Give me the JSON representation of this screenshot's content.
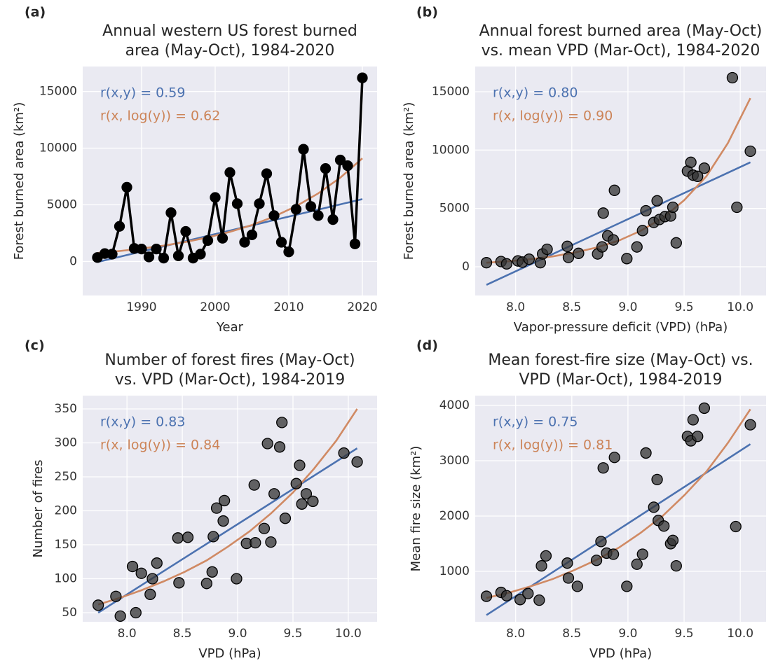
{
  "chart_data": [
    {
      "type": "line",
      "panel_label": "(a)",
      "title": [
        "Annual western US forest burned",
        "area (May-Oct), 1984-2020"
      ],
      "xlabel": "Year",
      "ylabel": "Forest burned area (km²)",
      "xlim": [
        1982,
        2022
      ],
      "ylim": [
        -3000,
        17200
      ],
      "xticks": [
        1990,
        2000,
        2010,
        2020
      ],
      "yticks": [
        0,
        5000,
        10000,
        15000
      ],
      "grid": true,
      "annotations": [
        {
          "text": "r(x,y) = 0.59",
          "color": "#4c72b0"
        },
        {
          "text": "r(x, log(y)) = 0.62",
          "color": "#cc8458"
        }
      ],
      "series": [
        {
          "color": "#000000",
          "line": true,
          "marker": true,
          "x": [
            1984,
            1985,
            1986,
            1987,
            1988,
            1989,
            1990,
            1991,
            1992,
            1993,
            1994,
            1995,
            1996,
            1997,
            1998,
            1999,
            2000,
            2001,
            2002,
            2003,
            2004,
            2005,
            2006,
            2007,
            2008,
            2009,
            2010,
            2011,
            2012,
            2013,
            2014,
            2015,
            2016,
            2017,
            2018,
            2019,
            2020
          ],
          "values": [
            350,
            700,
            650,
            3100,
            6550,
            1150,
            1100,
            400,
            1100,
            300,
            4300,
            500,
            2650,
            300,
            650,
            1850,
            5650,
            2050,
            7850,
            5100,
            1700,
            2350,
            5100,
            7750,
            4050,
            1700,
            850,
            4600,
            9900,
            4850,
            4050,
            8200,
            3700,
            8950,
            8450,
            1550,
            16200
          ]
        },
        {
          "color": "#4c72b0",
          "line": true,
          "marker": false,
          "x": [
            1984,
            2020
          ],
          "values": [
            -50,
            5500
          ]
        },
        {
          "color": "#d08a64",
          "line": true,
          "marker": false,
          "x": [
            1984,
            1987,
            1990,
            1993,
            1996,
            1999,
            2002,
            2005,
            2008,
            2011,
            2014,
            2017,
            2020
          ],
          "values": [
            750,
            923,
            1137,
            1400,
            1724,
            2123,
            2613,
            3218,
            3962,
            4878,
            6006,
            7395,
            9100
          ]
        }
      ]
    },
    {
      "type": "scatter",
      "panel_label": "(b)",
      "title": [
        "Annual forest burned area (May-Oct)",
        "vs. mean VPD (Mar-Oct), 1984-2020"
      ],
      "xlabel": "Vapor-pressure deficit (VPD) (hPa)",
      "ylabel": "Forest burned area (km²)",
      "xlim": [
        7.64,
        10.23
      ],
      "ylim": [
        -2460,
        17160
      ],
      "xticks": [
        {
          "value": 8,
          "label": "8.0"
        },
        8.5,
        {
          "value": 9,
          "label": "9.0"
        },
        9.5,
        {
          "value": 10,
          "label": "10.0"
        }
      ],
      "yticks": [
        0,
        5000,
        10000,
        15000
      ],
      "grid": true,
      "annotations": [
        {
          "text": "r(x,y) = 0.80",
          "color": "#4c72b0"
        },
        {
          "text": "r(x, log(y)) = 0.90",
          "color": "#cc8458"
        }
      ],
      "series": [
        {
          "color": "#4c72b0",
          "line": true,
          "marker": false,
          "x": [
            7.74,
            10.09
          ],
          "values": [
            -1550,
            8950
          ]
        },
        {
          "color": "#d08a64",
          "line": true,
          "marker": false,
          "x": [
            7.74,
            7.94,
            8.13,
            8.33,
            8.52,
            8.72,
            8.92,
            9.11,
            9.31,
            9.5,
            9.7,
            9.89,
            10.09
          ],
          "values": [
            350,
            477,
            651,
            888,
            1210,
            1650,
            2249,
            3067,
            4181,
            5700,
            7773,
            10600,
            14450
          ]
        },
        {
          "color": "#333333",
          "line": false,
          "marker": true,
          "x": [
            7.74,
            7.87,
            7.92,
            8.02,
            8.06,
            8.12,
            8.22,
            8.24,
            8.28,
            8.46,
            8.47,
            8.56,
            8.73,
            8.77,
            8.78,
            8.82,
            8.88,
            8.87,
            8.99,
            9.08,
            9.13,
            9.16,
            9.23,
            9.26,
            9.28,
            9.33,
            9.38,
            9.4,
            9.43,
            9.53,
            9.56,
            9.58,
            9.62,
            9.68,
            9.93,
            9.97,
            10.09
          ],
          "values": [
            350,
            450,
            250,
            500,
            400,
            650,
            350,
            1100,
            1500,
            1750,
            800,
            1150,
            1100,
            1700,
            4600,
            2650,
            6550,
            2300,
            700,
            1700,
            3100,
            4800,
            3800,
            5650,
            4050,
            4300,
            4350,
            5100,
            2050,
            8200,
            8950,
            7850,
            7750,
            8450,
            16200,
            5100,
            9900
          ]
        }
      ]
    },
    {
      "type": "scatter",
      "panel_label": "(c)",
      "title": [
        "Number of forest fires (May-Oct)",
        "vs. VPD (Mar-Oct), 1984-2019"
      ],
      "xlabel": "VPD (hPa)",
      "ylabel": "Number of fires",
      "xlim": [
        7.6,
        10.26
      ],
      "ylim": [
        36.6,
        369.6
      ],
      "xticks": [
        {
          "value": 8,
          "label": "8.0"
        },
        8.5,
        {
          "value": 9,
          "label": "9.0"
        },
        9.5,
        {
          "value": 10,
          "label": "10.0"
        }
      ],
      "yticks": [
        50,
        100,
        150,
        200,
        250,
        300,
        350
      ],
      "grid": true,
      "annotations": [
        {
          "text": "r(x,y) = 0.83",
          "color": "#4c72b0"
        },
        {
          "text": "r(x, log(y)) = 0.84",
          "color": "#cc8458"
        }
      ],
      "series": [
        {
          "color": "#4c72b0",
          "line": true,
          "marker": false,
          "x": [
            7.74,
            10.08
          ],
          "values": [
            50,
            292
          ]
        },
        {
          "color": "#d08a64",
          "line": true,
          "marker": false,
          "x": [
            7.74,
            7.94,
            8.13,
            8.33,
            8.52,
            8.72,
            8.91,
            9.11,
            9.3,
            9.5,
            9.69,
            9.89,
            10.08
          ],
          "values": [
            62,
            72,
            83,
            96,
            110,
            127,
            147,
            170,
            196,
            227,
            262,
            303,
            350
          ]
        },
        {
          "color": "#333333",
          "line": false,
          "marker": true,
          "x": [
            7.74,
            7.9,
            7.94,
            8.05,
            8.08,
            8.13,
            8.21,
            8.23,
            8.27,
            8.46,
            8.47,
            8.55,
            8.72,
            8.77,
            8.78,
            8.81,
            8.87,
            8.88,
            8.99,
            9.08,
            9.15,
            9.16,
            9.24,
            9.27,
            9.3,
            9.33,
            9.38,
            9.4,
            9.43,
            9.53,
            9.56,
            9.58,
            9.62,
            9.68,
            9.96,
            10.08
          ],
          "values": [
            61,
            74,
            45,
            118,
            50,
            108,
            77,
            100,
            123,
            160,
            94,
            161,
            93,
            110,
            162,
            204,
            185,
            215,
            100,
            152,
            238,
            153,
            174,
            299,
            154,
            225,
            294,
            330,
            189,
            240,
            267,
            210,
            225,
            214,
            285,
            272
          ]
        }
      ]
    },
    {
      "type": "scatter",
      "panel_label": "(d)",
      "title": [
        "Mean forest-fire size (May-Oct) vs.",
        "VPD (Mar-Oct), 1984-2019"
      ],
      "xlabel": "VPD (hPa)",
      "ylabel": "Mean fire size (km²)",
      "xlim": [
        7.64,
        10.23
      ],
      "ylim": [
        89,
        4177
      ],
      "xticks": [
        {
          "value": 8,
          "label": "8.0"
        },
        8.5,
        {
          "value": 9,
          "label": "9.0"
        },
        9.5,
        {
          "value": 10,
          "label": "10.0"
        }
      ],
      "yticks": [
        1000,
        2000,
        3000,
        4000
      ],
      "grid": true,
      "annotations": [
        {
          "text": "r(x,y) = 0.75",
          "color": "#4c72b0"
        },
        {
          "text": "r(x, log(y)) = 0.81",
          "color": "#cc8458"
        }
      ],
      "series": [
        {
          "color": "#4c72b0",
          "line": true,
          "marker": false,
          "x": [
            7.74,
            10.09
          ],
          "values": [
            210,
            3300
          ]
        },
        {
          "color": "#d08a64",
          "line": true,
          "marker": false,
          "x": [
            7.74,
            7.94,
            8.13,
            8.33,
            8.52,
            8.72,
            8.92,
            9.11,
            9.31,
            9.5,
            9.7,
            9.89,
            10.09
          ],
          "values": [
            520,
            615,
            728,
            862,
            1021,
            1208,
            1430,
            1693,
            2004,
            2372,
            2807,
            3322,
            3930
          ]
        },
        {
          "color": "#333333",
          "line": false,
          "marker": true,
          "x": [
            7.74,
            7.87,
            7.92,
            8.04,
            8.11,
            8.21,
            8.23,
            8.27,
            8.46,
            8.47,
            8.55,
            8.72,
            8.76,
            8.78,
            8.81,
            8.88,
            8.87,
            8.99,
            9.08,
            9.13,
            9.16,
            9.23,
            9.26,
            9.27,
            9.32,
            9.38,
            9.4,
            9.43,
            9.53,
            9.56,
            9.58,
            9.62,
            9.68,
            9.96,
            10.09
          ],
          "values": [
            550,
            620,
            560,
            490,
            600,
            480,
            1100,
            1280,
            1150,
            880,
            730,
            1200,
            1540,
            2870,
            1330,
            3060,
            1310,
            730,
            1130,
            1310,
            3140,
            2160,
            2660,
            1920,
            1820,
            1500,
            1560,
            1100,
            3440,
            3360,
            3740,
            3440,
            3950,
            1810,
            3650
          ]
        }
      ]
    }
  ]
}
